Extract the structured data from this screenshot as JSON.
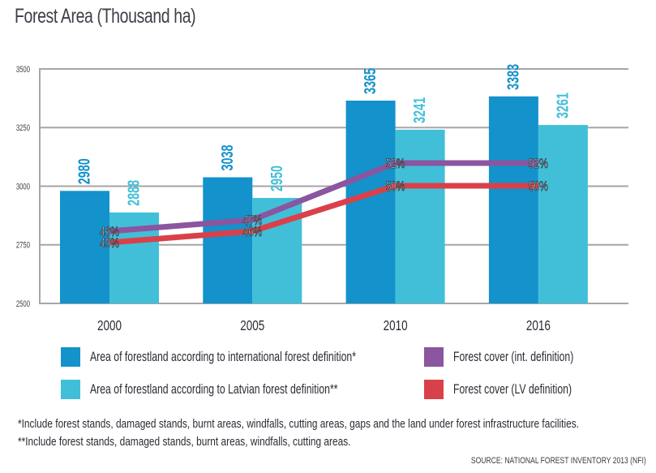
{
  "title": "Forest Area (Thousand ha)",
  "chart_data": {
    "type": "bar",
    "title": "Forest Area (Thousand ha)",
    "xlabel": "",
    "ylabel": "",
    "ylim": [
      2500,
      3500
    ],
    "yticks": [
      2500,
      2750,
      3000,
      3250,
      3500
    ],
    "grid": true,
    "categories": [
      "2000",
      "2005",
      "2010",
      "2016"
    ],
    "series": [
      {
        "name": "Area of forestland according to international forest definition*",
        "type": "bar",
        "color": "#1392cb",
        "values": [
          2980,
          3038,
          3365,
          3383
        ]
      },
      {
        "name": "Area of forestland according to Latvian forest definition**",
        "type": "bar",
        "color": "#41bfd9",
        "values": [
          2888,
          2950,
          3241,
          3261
        ]
      },
      {
        "name": "Forest cover (int. definition)",
        "type": "line",
        "color": "#8b55a0",
        "unit": "%",
        "values": [
          46,
          47,
          52,
          52
        ]
      },
      {
        "name": "Forest cover (LV definition)",
        "type": "line",
        "color": "#d9414a",
        "unit": "%",
        "values": [
          45,
          46,
          50,
          50
        ]
      }
    ],
    "legend_position": "bottom"
  },
  "legend": [
    {
      "label": "Area of forestland according to international forest definition*",
      "color": "#1392cb"
    },
    {
      "label": "Area of forestland according to Latvian forest definition**",
      "color": "#41bfd9"
    },
    {
      "label": "Forest cover (int. definition)",
      "color": "#8b55a0"
    },
    {
      "label": "Forest cover (LV definition)",
      "color": "#d9414a"
    }
  ],
  "notes": [
    "*Include forest stands, damaged stands, burnt areas, windfalls, cutting areas, gaps and the land under forest infrastructure facilities.",
    "**Include forest stands, damaged stands, burnt areas, windfalls, cutting areas."
  ],
  "source": "SOURCE: NATIONAL FOREST INVENTORY 2013 (NFI)"
}
